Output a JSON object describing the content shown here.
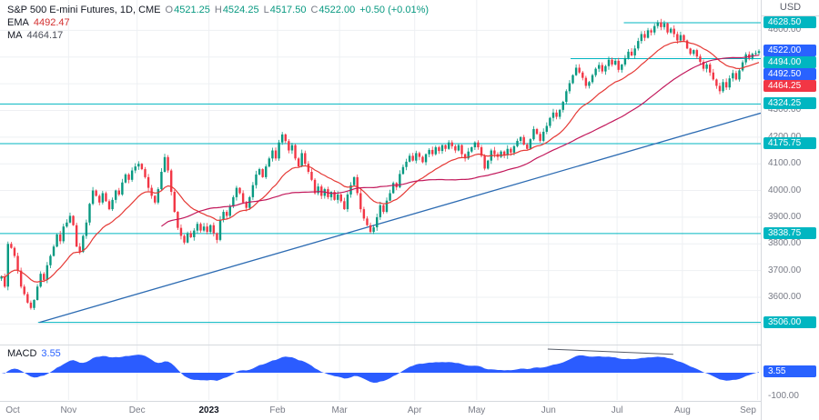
{
  "header": {
    "symbol_title": "S&P 500 E-mini Futures, 1D, CME",
    "ohlc_labels": {
      "o": "O",
      "h": "H",
      "l": "L",
      "c": "C"
    },
    "ohlc_values": {
      "o": "4521.25",
      "h": "4524.25",
      "l": "4517.50",
      "c": "4522.00"
    },
    "change": "+0.50 (+0.01%)",
    "ema_label": "EMA",
    "ema_value": "4492.47",
    "ma_label": "MA",
    "ma_value": "4464.17"
  },
  "axis": {
    "currency": "USD",
    "macd_low_label": "-100.00"
  },
  "macd_panel": {
    "label": "MACD",
    "value": "3.55"
  },
  "chart_data": {
    "type": "candlestick",
    "title": "S&P 500 E-mini Futures, 1D, CME",
    "interval": "1D",
    "exchange": "CME",
    "last_bar": {
      "open": 4521.25,
      "high": 4524.25,
      "low": 4517.5,
      "close": 4522.0,
      "change_pts": 0.5,
      "change_pct": 0.01
    },
    "price_axis": {
      "min": 3440,
      "max": 4700,
      "gridlines": [
        3500,
        3600,
        3700,
        3800,
        3900,
        4000,
        4100,
        4200,
        4300,
        4400,
        4500,
        4600
      ],
      "plain_labels": [
        4600,
        4300,
        4200,
        4100,
        4000,
        3900,
        3800,
        3700,
        3600
      ]
    },
    "months": [
      {
        "label": "Oct",
        "i": 0
      },
      {
        "label": "Nov",
        "i": 21
      },
      {
        "label": "Dec",
        "i": 42
      },
      {
        "label": "2023",
        "i": 64,
        "bold": true
      },
      {
        "label": "Feb",
        "i": 85
      },
      {
        "label": "Mar",
        "i": 104
      },
      {
        "label": "Apr",
        "i": 127
      },
      {
        "label": "May",
        "i": 146
      },
      {
        "label": "Jun",
        "i": 168
      },
      {
        "label": "Jul",
        "i": 189
      },
      {
        "label": "Aug",
        "i": 209
      },
      {
        "label": "Sep",
        "i": 232
      }
    ],
    "closes": [
      3678,
      3640,
      3800,
      3785,
      3755,
      3700,
      3640,
      3612,
      3580,
      3560,
      3590,
      3640,
      3688,
      3665,
      3720,
      3755,
      3790,
      3835,
      3810,
      3865,
      3880,
      3905,
      3870,
      3790,
      3770,
      3830,
      3880,
      3950,
      4000,
      3980,
      3955,
      3990,
      3960,
      3930,
      3965,
      4000,
      3985,
      4030,
      4060,
      4040,
      4075,
      4090,
      4100,
      4080,
      4050,
      4010,
      3980,
      3955,
      4005,
      4070,
      4125,
      4075,
      3995,
      3920,
      3860,
      3830,
      3805,
      3840,
      3825,
      3850,
      3875,
      3850,
      3865,
      3845,
      3870,
      3840,
      3815,
      3890,
      3920,
      3905,
      3940,
      3975,
      4010,
      3990,
      3955,
      3935,
      3975,
      4020,
      4060,
      4080,
      4050,
      4090,
      4120,
      4150,
      4120,
      4180,
      4210,
      4185,
      4150,
      4170,
      4120,
      4090,
      4140,
      4100,
      4070,
      4040,
      3990,
      4015,
      3980,
      4005,
      3975,
      3995,
      3965,
      3985,
      3960,
      3930,
      3985,
      4020,
      4050,
      3990,
      3930,
      3895,
      3870,
      3845,
      3862,
      3900,
      3945,
      3920,
      3962,
      3990,
      4028,
      4012,
      4062,
      4088,
      4108,
      4130,
      4112,
      4140,
      4126,
      4106,
      4136,
      4152,
      4136,
      4162,
      4148,
      4170,
      4156,
      4180,
      4166,
      4150,
      4170,
      4136,
      4120,
      4146,
      4162,
      4180,
      4162,
      4130,
      4082,
      4112,
      4150,
      4136,
      4126,
      4146,
      4132,
      4156,
      4142,
      4166,
      4186,
      4200,
      4172,
      4156,
      4192,
      4230,
      4212,
      4186,
      4220,
      4242,
      4272,
      4292,
      4276,
      4302,
      4332,
      4372,
      4402,
      4432,
      4460,
      4442,
      4422,
      4392,
      4406,
      4432,
      4456,
      4470,
      4446,
      4466,
      4490,
      4472,
      4486,
      4452,
      4472,
      4496,
      4520,
      4506,
      4532,
      4560,
      4586,
      4572,
      4600,
      4592,
      4616,
      4630,
      4612,
      4626,
      4592,
      4606,
      4586,
      4562,
      4582,
      4562,
      4532,
      4512,
      4526,
      4502,
      4482,
      4456,
      4472,
      4442,
      4416,
      4392,
      4372,
      4406,
      4386,
      4420,
      4440,
      4416,
      4450,
      4480,
      4510,
      4496,
      4512,
      4515,
      4522
    ],
    "overlays": {
      "ema": {
        "type": "EMA",
        "period": 20,
        "current": 4492.47,
        "badge": 4492.5,
        "color": "#e53935"
      },
      "ma": {
        "type": "MA",
        "period": 50,
        "current": 4464.17,
        "badge": 4464.25,
        "color": "#c2185b"
      }
    },
    "levels": [
      {
        "price": 4628.5,
        "start_frac": 0.82
      },
      {
        "price": 4494.0,
        "start_frac": 0.75
      },
      {
        "price": 4324.25,
        "start_frac": 0.0
      },
      {
        "price": 4175.75,
        "start_frac": 0.0
      },
      {
        "price": 3838.75,
        "start_frac": 0.0
      },
      {
        "price": 3506.0,
        "start_frac": 0.05
      }
    ],
    "trendline": {
      "start_frac": 0.052,
      "start_price": 3506,
      "end_frac": 1.0,
      "end_price": 4290
    },
    "price_badges": [
      {
        "text": "4628.50",
        "price": 4628.5,
        "color": "teal"
      },
      {
        "text": "4522.00",
        "price": 4522.0,
        "color": "blue"
      },
      {
        "text": "4494.00",
        "price": 4494.0,
        "color": "teal"
      },
      {
        "text": "4492.50",
        "price": 4492.5,
        "color": "blue"
      },
      {
        "text": "4464.25",
        "price": 4464.25,
        "color": "red"
      },
      {
        "text": "4324.25",
        "price": 4324.25,
        "color": "teal"
      },
      {
        "text": "4175.75",
        "price": 4175.75,
        "color": "teal"
      },
      {
        "text": "3838.75",
        "price": 3838.75,
        "color": "teal"
      },
      {
        "text": "3506.00",
        "price": 3506.0,
        "color": "teal"
      }
    ],
    "macd": {
      "fast": 12,
      "slow": 26,
      "current": 3.55,
      "axis_min_label": -100.0,
      "trendline": {
        "x1_frac": 0.72,
        "v1": 100,
        "x2_frac": 0.885,
        "v2": 78
      }
    },
    "colors": {
      "up": "#089981",
      "down": "#f23645",
      "teal": "#00b6c1",
      "blue": "#2962ff",
      "red": "#f23645",
      "grid": "#eef0f3",
      "macd_fill": "#2b5cff",
      "trend": "#2c6bb2"
    }
  }
}
